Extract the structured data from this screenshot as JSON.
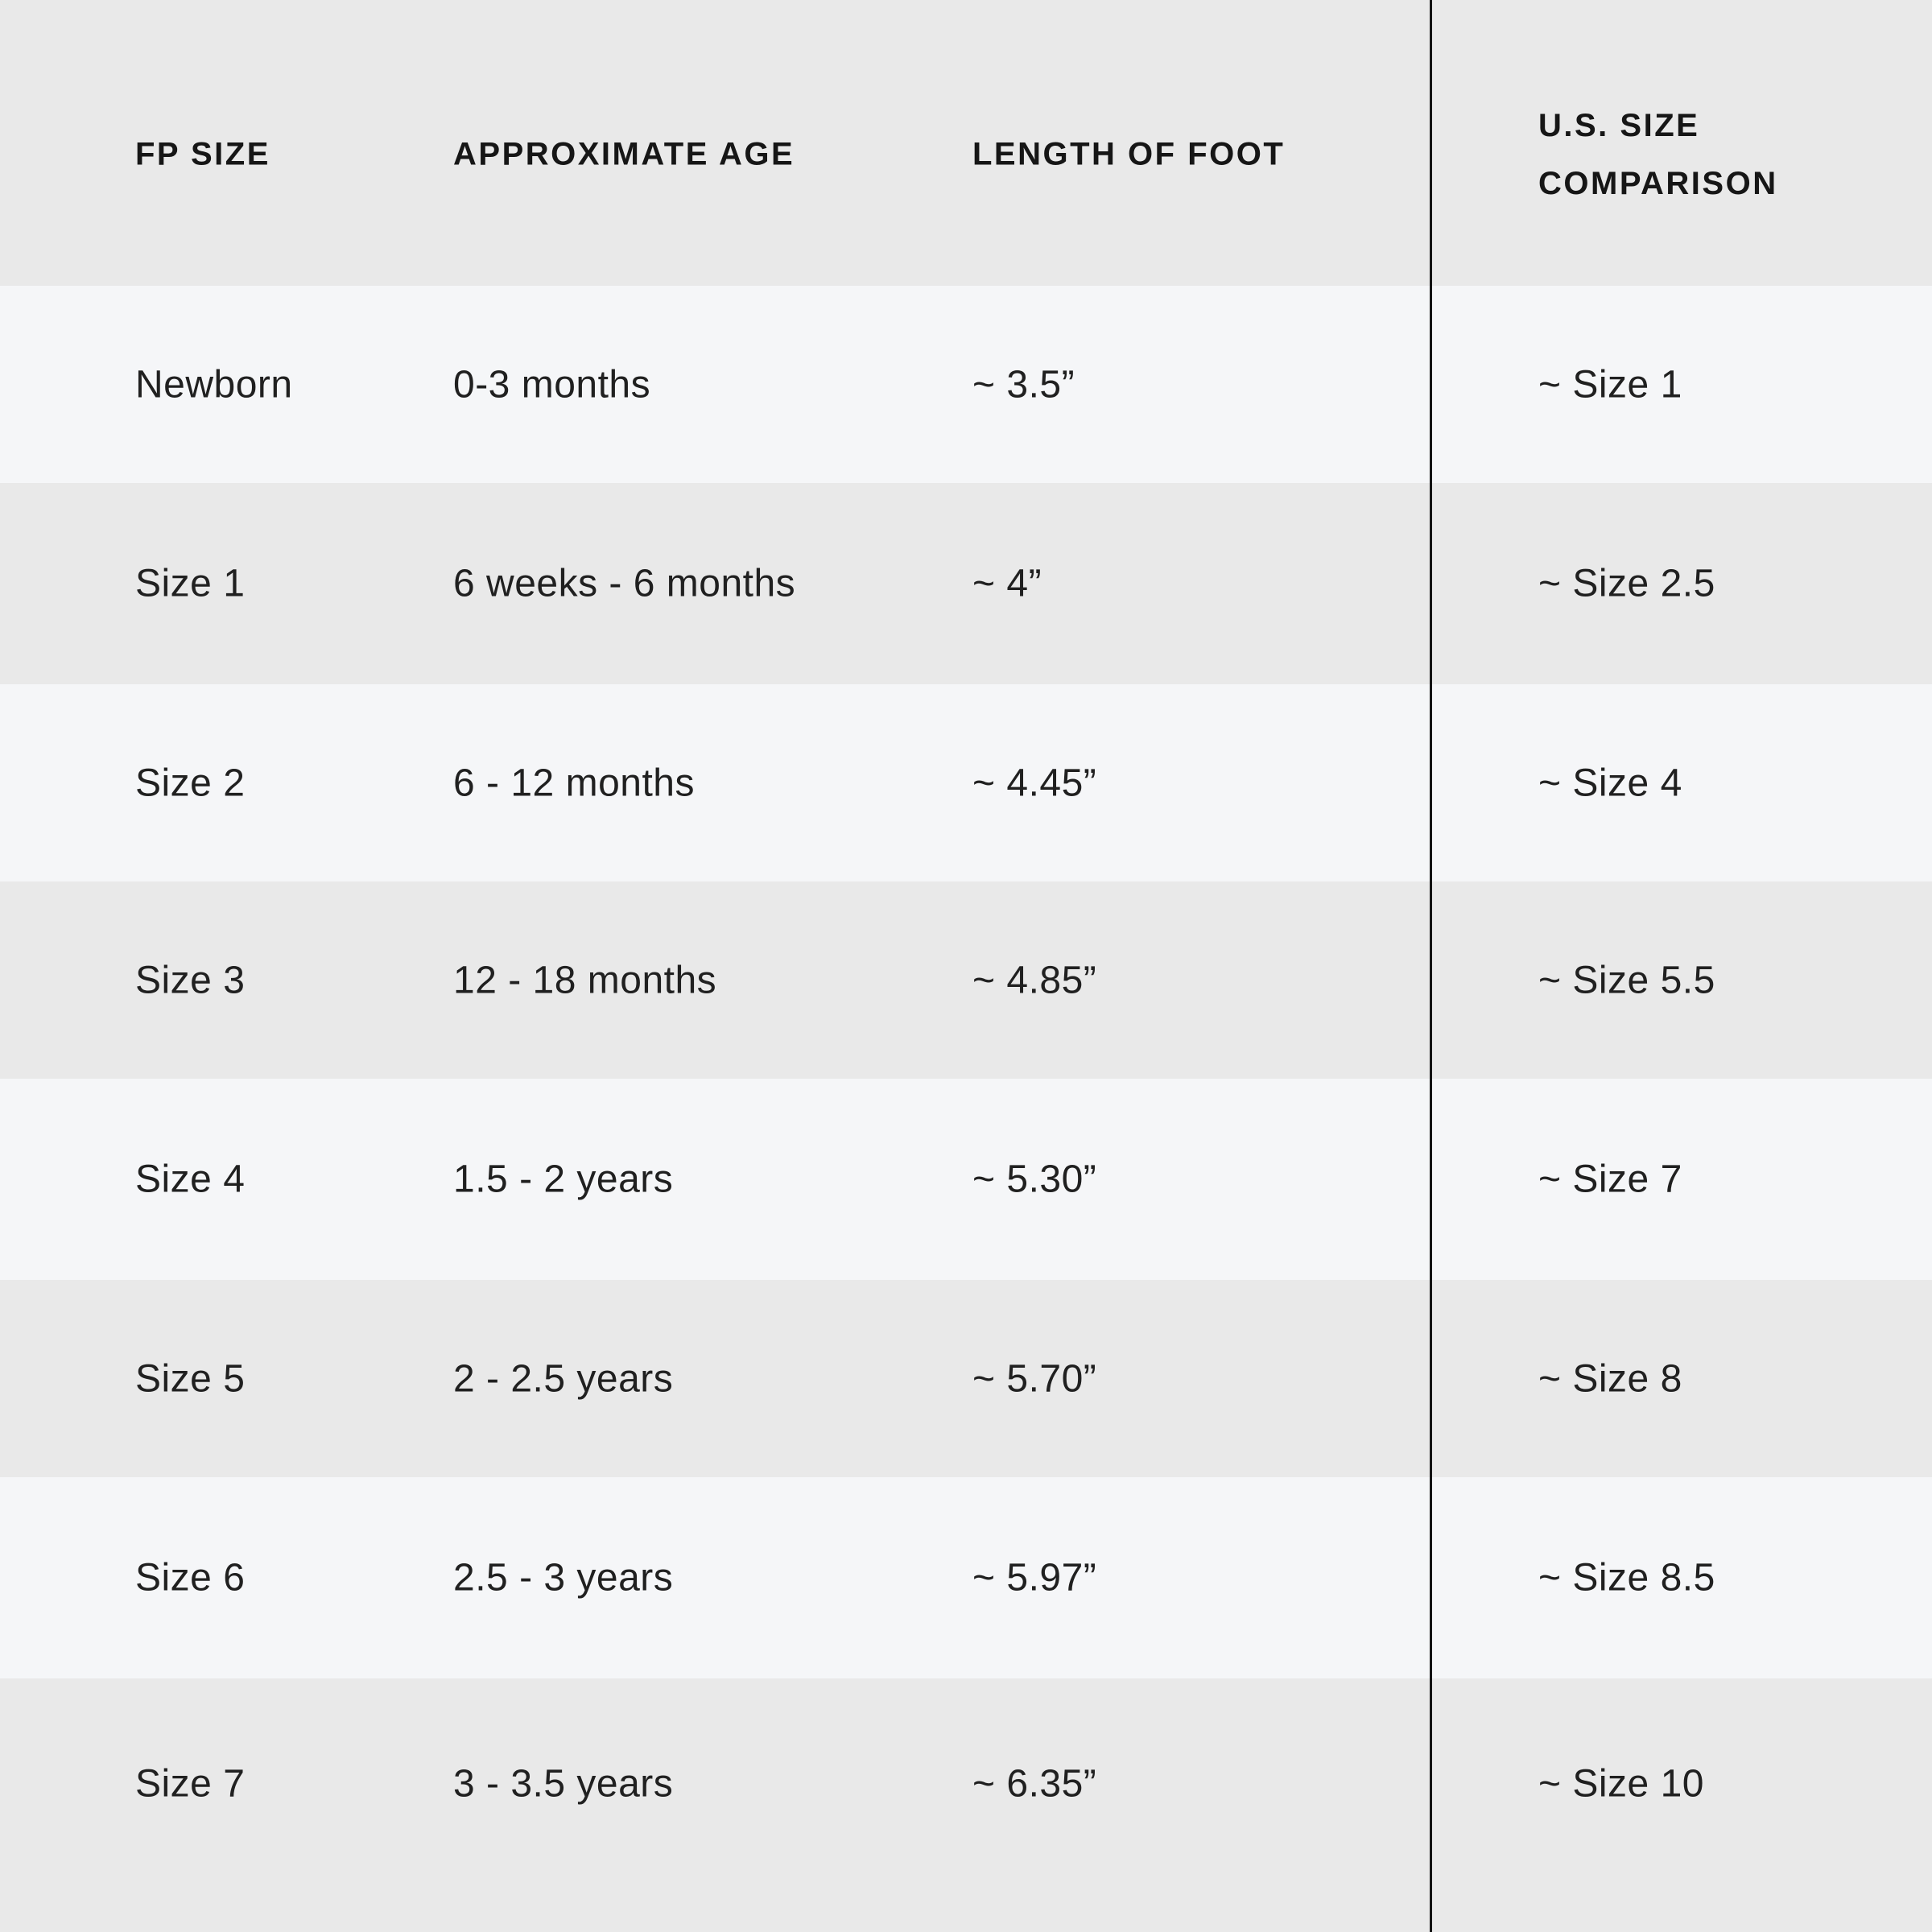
{
  "table": {
    "header": {
      "fp_size": "FP SIZE",
      "approximate_age": "APPROXIMATE AGE",
      "length_of_foot": "LENGTH OF FOOT",
      "us_size_line1": "U.S. SIZE",
      "us_size_line2": "COMPARISON"
    },
    "rows": [
      {
        "fp_size": "Newborn",
        "age": "0-3 months",
        "foot_length": "~ 3.5”",
        "us_size": "~ Size 1"
      },
      {
        "fp_size": "Size 1",
        "age": "6 weeks - 6 months",
        "foot_length": "~ 4”",
        "us_size": "~ Size 2.5"
      },
      {
        "fp_size": "Size 2",
        "age": "6 - 12 months",
        "foot_length": "~ 4.45”",
        "us_size": "~ Size 4"
      },
      {
        "fp_size": "Size 3",
        "age": "12 - 18 months",
        "foot_length": "~ 4.85”",
        "us_size": "~ Size 5.5"
      },
      {
        "fp_size": "Size 4",
        "age": "1.5 - 2 years",
        "foot_length": "~ 5.30”",
        "us_size": "~ Size 7"
      },
      {
        "fp_size": "Size 5",
        "age": "2 - 2.5 years",
        "foot_length": "~ 5.70”",
        "us_size": "~ Size 8"
      },
      {
        "fp_size": "Size 6",
        "age": "2.5 - 3 years",
        "foot_length": "~ 5.97”",
        "us_size": "~ Size 8.5"
      },
      {
        "fp_size": "Size 7",
        "age": "3 - 3.5 years",
        "foot_length": "~ 6.35”",
        "us_size": "~ Size 10"
      }
    ]
  },
  "chart_data": {
    "type": "table",
    "columns": [
      "FP SIZE",
      "APPROXIMATE AGE",
      "LENGTH OF FOOT",
      "U.S. SIZE COMPARISON"
    ],
    "rows": [
      [
        "Newborn",
        "0-3 months",
        "~ 3.5”",
        "~ Size 1"
      ],
      [
        "Size 1",
        "6 weeks - 6 months",
        "~ 4”",
        "~ Size 2.5"
      ],
      [
        "Size 2",
        "6 - 12 months",
        "~ 4.45”",
        "~ Size 4"
      ],
      [
        "Size 3",
        "12 - 18 months",
        "~ 4.85”",
        "~ Size 5.5"
      ],
      [
        "Size 4",
        "1.5 - 2 years",
        "~ 5.30”",
        "~ Size 7"
      ],
      [
        "Size 5",
        "2 - 2.5 years",
        "~ 5.70”",
        "~ Size 8"
      ],
      [
        "Size 6",
        "2.5 - 3 years",
        "~ 5.97”",
        "~ Size 8.5"
      ],
      [
        "Size 7",
        "3 - 3.5 years",
        "~ 6.35”",
        "~ Size 10"
      ]
    ]
  },
  "colors": {
    "band_dark": "#e9e9e9",
    "band_light": "#f5f6f8",
    "divider": "#141414",
    "header_text": "#161616",
    "body_text": "#202020"
  }
}
